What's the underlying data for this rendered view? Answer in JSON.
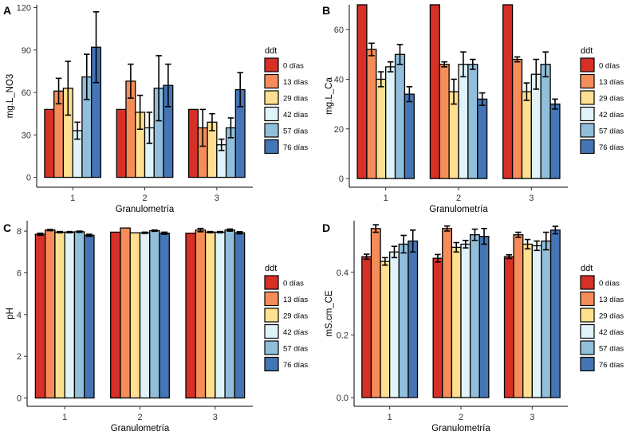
{
  "figure": {
    "legend_title": "ddt",
    "legend_labels": [
      "0 días",
      "13 días",
      "29 días",
      "42 días",
      "57 días",
      "76 días"
    ],
    "colors": [
      "#d73027",
      "#f68d59",
      "#fee090",
      "#e0f3f8",
      "#91bfdb",
      "#4575b4"
    ]
  },
  "chart_data": [
    {
      "tag": "A",
      "type": "bar",
      "xlabel": "Granulometría",
      "ylabel": "mg.L_NO3",
      "categories": [
        "1",
        "2",
        "3"
      ],
      "ylim": [
        -7,
        122
      ],
      "yticks": [
        0,
        30,
        60,
        90,
        120
      ],
      "tick_labels": [
        "0",
        "30",
        "60",
        "90",
        "120"
      ],
      "series": [
        {
          "name": "0 días",
          "values": [
            48,
            48,
            48
          ],
          "errors": [
            0,
            0,
            0
          ]
        },
        {
          "name": "13 días",
          "values": [
            61,
            68,
            35
          ],
          "errors": [
            9,
            12,
            13
          ]
        },
        {
          "name": "29 días",
          "values": [
            63,
            46,
            39
          ],
          "errors": [
            19,
            12,
            6
          ]
        },
        {
          "name": "42 días",
          "values": [
            33,
            35,
            23
          ],
          "errors": [
            6,
            11,
            4
          ]
        },
        {
          "name": "57 días",
          "values": [
            71,
            63,
            35
          ],
          "errors": [
            16,
            23,
            7
          ]
        },
        {
          "name": "76 días",
          "values": [
            92,
            65,
            62
          ],
          "errors": [
            25,
            15,
            12
          ]
        }
      ]
    },
    {
      "tag": "B",
      "type": "bar",
      "xlabel": "Granulometría",
      "ylabel": "mg.L_Ca",
      "categories": [
        "1",
        "2",
        "3"
      ],
      "ylim": [
        -3.5,
        70
      ],
      "yticks": [
        0,
        20,
        40,
        60
      ],
      "tick_labels": [
        "0",
        "20",
        "40",
        "60"
      ],
      "series": [
        {
          "name": "0 días",
          "values": [
            70,
            70,
            70
          ],
          "errors": [
            0,
            0,
            0
          ]
        },
        {
          "name": "13 días",
          "values": [
            52,
            46,
            48
          ],
          "errors": [
            2.5,
            1,
            1
          ]
        },
        {
          "name": "29 días",
          "values": [
            40,
            35,
            35
          ],
          "errors": [
            3,
            5,
            3.5
          ]
        },
        {
          "name": "42 días",
          "values": [
            45,
            46,
            42
          ],
          "errors": [
            2,
            5,
            6
          ]
        },
        {
          "name": "57 días",
          "values": [
            50,
            46,
            46
          ],
          "errors": [
            4,
            2,
            5
          ]
        },
        {
          "name": "76 días",
          "values": [
            34,
            32,
            30
          ],
          "errors": [
            3,
            2.5,
            2
          ]
        }
      ]
    },
    {
      "tag": "C",
      "type": "bar",
      "xlabel": "Granulometría",
      "ylabel": "pH",
      "categories": [
        "1",
        "2",
        "3"
      ],
      "ylim": [
        -0.4,
        8.5
      ],
      "yticks": [
        0,
        2,
        4,
        6,
        8
      ],
      "tick_labels": [
        "0",
        "2",
        "4",
        "6",
        "8"
      ],
      "series": [
        {
          "name": "0 días",
          "values": [
            7.85,
            7.95,
            7.9
          ],
          "errors": [
            0.05,
            0,
            0
          ]
        },
        {
          "name": "13 días",
          "values": [
            8.05,
            8.15,
            8.05
          ],
          "errors": [
            0.03,
            0,
            0.08
          ]
        },
        {
          "name": "29 días",
          "values": [
            7.95,
            7.92,
            7.95
          ],
          "errors": [
            0.03,
            0,
            0.03
          ]
        },
        {
          "name": "42 días",
          "values": [
            7.95,
            7.92,
            7.95
          ],
          "errors": [
            0.03,
            0.03,
            0.03
          ]
        },
        {
          "name": "57 días",
          "values": [
            7.97,
            8.02,
            8.05
          ],
          "errors": [
            0.03,
            0.03,
            0.05
          ]
        },
        {
          "name": "76 días",
          "values": [
            7.8,
            7.9,
            7.92
          ],
          "errors": [
            0.05,
            0.05,
            0.05
          ]
        }
      ]
    },
    {
      "tag": "D",
      "type": "bar",
      "xlabel": "Granulometría",
      "ylabel": "mS.cm_CE",
      "categories": [
        "1",
        "2",
        "3"
      ],
      "ylim": [
        -0.028,
        0.565
      ],
      "yticks": [
        0.0,
        0.2,
        0.4
      ],
      "tick_labels": [
        "0.0",
        "0.2",
        "0.4"
      ],
      "series": [
        {
          "name": "0 días",
          "values": [
            0.45,
            0.445,
            0.45
          ],
          "errors": [
            0.008,
            0.012,
            0.006
          ]
        },
        {
          "name": "13 días",
          "values": [
            0.54,
            0.54,
            0.52
          ],
          "errors": [
            0.012,
            0.008,
            0.008
          ]
        },
        {
          "name": "29 días",
          "values": [
            0.435,
            0.48,
            0.49
          ],
          "errors": [
            0.012,
            0.015,
            0.015
          ]
        },
        {
          "name": "42 días",
          "values": [
            0.465,
            0.49,
            0.485
          ],
          "errors": [
            0.018,
            0.012,
            0.015
          ]
        },
        {
          "name": "57 días",
          "values": [
            0.49,
            0.52,
            0.5
          ],
          "errors": [
            0.028,
            0.018,
            0.028
          ]
        },
        {
          "name": "76 días",
          "values": [
            0.5,
            0.515,
            0.535
          ],
          "errors": [
            0.035,
            0.025,
            0.012
          ]
        }
      ]
    }
  ]
}
